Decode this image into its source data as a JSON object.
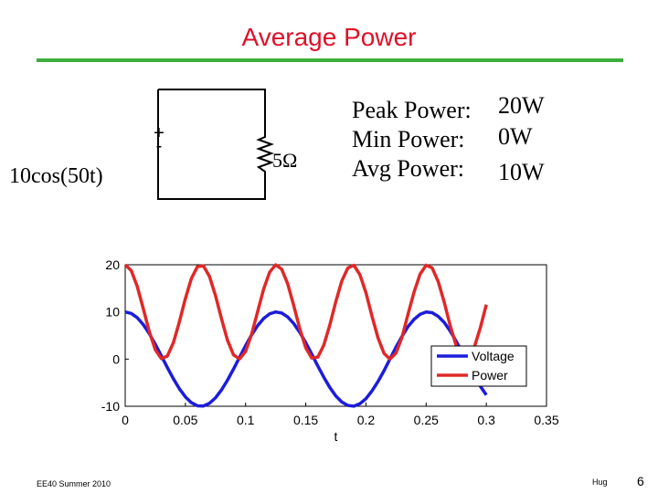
{
  "slide": {
    "title": "Average Power",
    "circuit": {
      "source_plus": "+",
      "source_minus": "-",
      "source_label": "10cos(50t)",
      "resistor_label": "5Ω"
    },
    "results": [
      {
        "label": "Peak Power:",
        "value": "20W"
      },
      {
        "label": "Min Power:",
        "value": "0W"
      },
      {
        "label": "Avg Power:",
        "value": "10W"
      }
    ],
    "footer": {
      "course": "EE40 Summer 2010",
      "author": "Hug",
      "page": "6"
    }
  },
  "chart_data": {
    "type": "line",
    "xlabel": "t",
    "x": [
      0,
      0.005,
      0.01,
      0.015,
      0.02,
      0.025,
      0.03,
      0.035,
      0.04,
      0.045,
      0.05,
      0.055,
      0.06,
      0.065,
      0.07,
      0.075,
      0.08,
      0.085,
      0.09,
      0.095,
      0.1,
      0.105,
      0.11,
      0.115,
      0.12,
      0.125,
      0.13,
      0.135,
      0.14,
      0.145,
      0.15,
      0.155,
      0.16,
      0.165,
      0.17,
      0.175,
      0.18,
      0.185,
      0.19,
      0.195,
      0.2,
      0.205,
      0.21,
      0.215,
      0.22,
      0.225,
      0.23,
      0.235,
      0.24,
      0.245,
      0.25,
      0.255,
      0.26,
      0.265,
      0.27,
      0.275,
      0.28,
      0.285,
      0.29,
      0.295,
      0.3
    ],
    "series": [
      {
        "name": "Voltage",
        "color": "#1c1cdc",
        "values": [
          10,
          9.69,
          8.78,
          7.32,
          5.4,
          3.15,
          0.71,
          -1.78,
          -4.16,
          -6.28,
          -8.01,
          -9.24,
          -9.9,
          -9.94,
          -9.37,
          -8.21,
          -6.54,
          -4.46,
          -2.11,
          0.38,
          2.84,
          5.12,
          7.09,
          8.61,
          9.6,
          10,
          9.77,
          8.93,
          7.54,
          5.68,
          3.47,
          1.04,
          -1.46,
          -3.85,
          -6.02,
          -7.82,
          -9.11,
          -9.83,
          -9.97,
          -9.45,
          -8.39,
          -6.75,
          -4.76,
          -2.47,
          0.04,
          2.55,
          4.83,
          6.92,
          8.44,
          9.5,
          9.98,
          9.83,
          9.07,
          7.78,
          5.95,
          3.77,
          1.37,
          -1.16,
          -3.55,
          -5.75,
          -7.6
        ]
      },
      {
        "name": "Power",
        "color": "#e02828",
        "values": [
          20,
          18.78,
          15.4,
          10.71,
          5.84,
          1.99,
          0.1,
          0.64,
          3.46,
          7.89,
          12.84,
          17.09,
          19.6,
          19.76,
          17.54,
          13.47,
          8.54,
          3.98,
          0.89,
          0.03,
          1.61,
          5.25,
          10.05,
          14.83,
          18.44,
          19.99,
          19.07,
          15.95,
          11.37,
          6.46,
          2.4,
          0.22,
          0.42,
          2.96,
          7.25,
          12.21,
          16.6,
          19.32,
          19.89,
          17.88,
          14.08,
          9.12,
          4.52,
          1.22,
          0,
          1.3,
          4.67,
          9.56,
          14.24,
          18.03,
          19.91,
          19.33,
          16.47,
          12.09,
          7.08,
          2.84,
          0.37,
          0.27,
          2.52,
          6.62,
          11.54
        ]
      }
    ],
    "xlim": [
      0,
      0.35
    ],
    "xticks": [
      0,
      0.05,
      0.1,
      0.15,
      0.2,
      0.25,
      0.3,
      0.35
    ],
    "ylim": [
      -10,
      20
    ],
    "yticks": [
      -10,
      0,
      10,
      20
    ],
    "grid": false,
    "legend": "lower right"
  }
}
